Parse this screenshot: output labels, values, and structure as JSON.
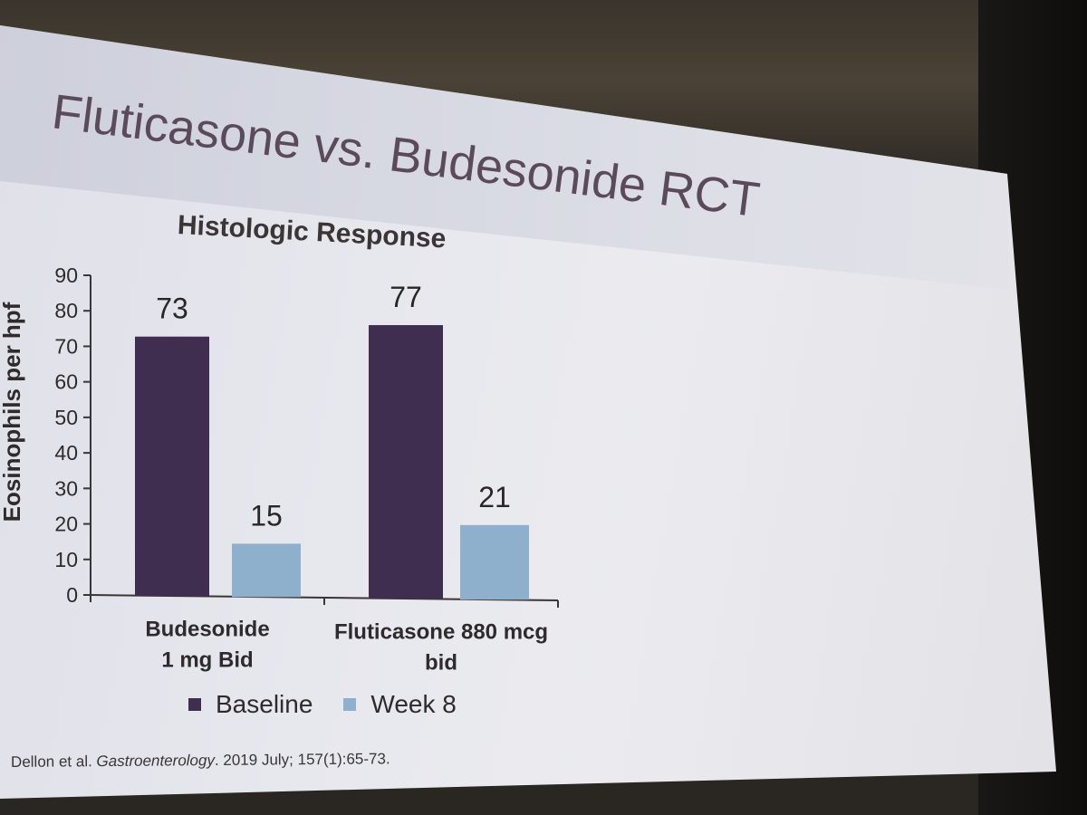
{
  "slide": {
    "title": "Fluticasone vs. Budesonide RCT",
    "citation": {
      "authors": "Dellon et al.",
      "journal": "Gastroenterology",
      "details": ". 2019 July; 157(1):65-73."
    }
  },
  "chart_data": {
    "type": "bar",
    "title": "Histologic Response",
    "xlabel": "",
    "ylabel": "Eosinophils per hpf",
    "ylim": [
      0,
      90
    ],
    "yticks": [
      0,
      10,
      20,
      30,
      40,
      50,
      60,
      70,
      80,
      90
    ],
    "categories": [
      [
        "Budesonide",
        "1 mg Bid"
      ],
      [
        "Fluticasone 880 mcg",
        "bid"
      ]
    ],
    "series": [
      {
        "name": "Baseline",
        "values": [
          73,
          77
        ],
        "labels": [
          "73",
          "77"
        ],
        "color": "#3f2e4f"
      },
      {
        "name": "Week 8",
        "values": [
          15,
          21
        ],
        "labels": [
          "15",
          "21"
        ],
        "color": "#8fb0cc"
      }
    ],
    "grid": false,
    "legend": "bottom"
  }
}
